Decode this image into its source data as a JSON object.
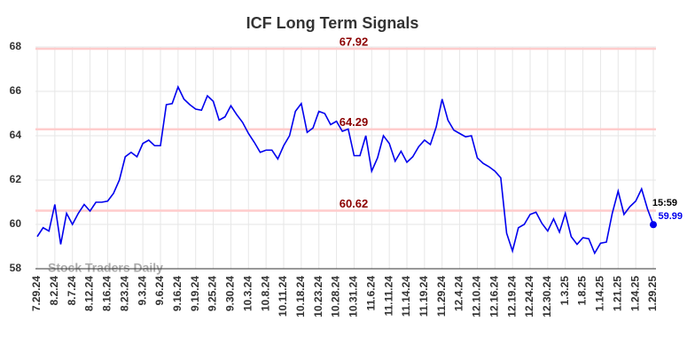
{
  "chart_data": {
    "type": "line",
    "title": "ICF Long Term Signals",
    "categories": [
      "7.29.24",
      null,
      null,
      "8.2.24",
      null,
      null,
      "8.7.24",
      null,
      null,
      "8.12.24",
      null,
      null,
      "8.16.24",
      null,
      null,
      "8.23.24",
      null,
      null,
      "9.3.24",
      null,
      null,
      "9.6.24",
      null,
      null,
      "9.16.24",
      null,
      null,
      "9.19.24",
      null,
      null,
      "9.25.24",
      null,
      null,
      "9.30.24",
      null,
      null,
      "10.3.24",
      null,
      null,
      "10.8.24",
      null,
      null,
      "10.11.24",
      null,
      null,
      "10.18.24",
      null,
      null,
      "10.23.24",
      null,
      null,
      "10.28.24",
      null,
      null,
      "10.31.24",
      null,
      null,
      "11.6.24",
      null,
      null,
      "11.11.24",
      null,
      null,
      "11.14.24",
      null,
      null,
      "11.19.24",
      null,
      null,
      "11.29.24",
      null,
      null,
      "12.4.24",
      null,
      null,
      "12.10.24",
      null,
      null,
      "12.16.24",
      null,
      null,
      "12.19.24",
      null,
      null,
      "12.24.24",
      null,
      null,
      "12.30.24",
      null,
      null,
      "1.3.25",
      null,
      null,
      "1.8.25",
      null,
      null,
      "1.14.25",
      null,
      null,
      "1.21.25",
      null,
      null,
      "1.24.25",
      null,
      null,
      "1.29.25"
    ],
    "values": [
      59.45,
      59.85,
      59.7,
      60.9,
      59.1,
      60.5,
      60.0,
      60.5,
      60.9,
      60.6,
      61.0,
      61.0,
      61.05,
      61.4,
      62.0,
      63.05,
      63.25,
      63.05,
      63.65,
      63.8,
      63.55,
      63.55,
      65.4,
      65.45,
      66.2,
      65.65,
      65.4,
      65.2,
      65.15,
      65.8,
      65.55,
      64.7,
      64.85,
      65.35,
      64.95,
      64.6,
      64.1,
      63.7,
      63.25,
      63.35,
      63.35,
      62.95,
      63.55,
      64.0,
      65.1,
      65.45,
      64.15,
      64.35,
      65.1,
      65.0,
      64.5,
      64.65,
      64.2,
      64.3,
      63.1,
      63.1,
      64.0,
      62.4,
      63.0,
      64.0,
      63.65,
      62.85,
      63.3,
      62.8,
      63.05,
      63.5,
      63.8,
      63.6,
      64.4,
      65.65,
      64.7,
      64.25,
      64.1,
      63.95,
      64.0,
      63.0,
      62.75,
      62.6,
      62.4,
      62.1,
      59.6,
      58.8,
      59.85,
      60.0,
      60.45,
      60.55,
      60.05,
      59.7,
      60.25,
      59.65,
      60.5,
      59.45,
      59.1,
      59.4,
      59.35,
      58.7,
      59.15,
      59.2,
      60.5,
      61.5,
      60.45,
      60.8,
      61.05,
      61.6,
      60.7,
      59.99
    ],
    "color": "#0000ee",
    "levels": [
      67.92,
      64.29,
      60.62
    ],
    "level_color": "#8b0000",
    "last_time": "15:59",
    "watermark": "Stock Traders Daily",
    "ylim": [
      58,
      68
    ],
    "yticks": [
      58,
      60,
      62,
      64,
      66,
      68
    ],
    "grid": true
  }
}
